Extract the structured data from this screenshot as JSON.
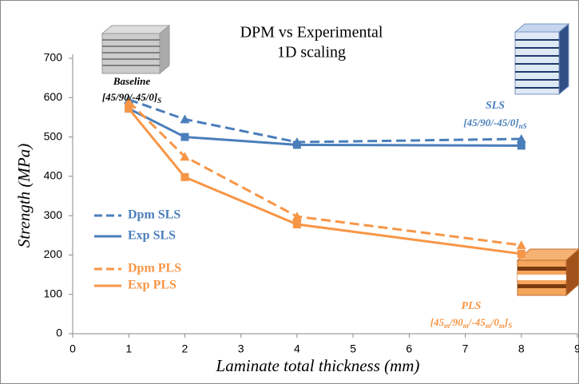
{
  "chart_data": {
    "type": "line",
    "title": "DPM vs Experimental",
    "subtitle": "1D scaling",
    "x_label": "Laminate total thickness (mm)",
    "y_label": "Strength (MPa)",
    "x": [
      1,
      2,
      4,
      8
    ],
    "series": [
      {
        "name": "Dpm SLS",
        "color": "#4a7ebb",
        "line_style": "dashed",
        "marker": "triangle",
        "values": [
          595,
          545,
          487,
          495
        ]
      },
      {
        "name": "Exp SLS",
        "color": "#4a7ebb",
        "line_style": "solid",
        "marker": "square",
        "values": [
          572,
          500,
          480,
          478
        ]
      },
      {
        "name": "Dpm PLS",
        "color": "#f79646",
        "line_style": "dashed",
        "marker": "triangle",
        "values": [
          590,
          450,
          298,
          225
        ]
      },
      {
        "name": "Exp PLS",
        "color": "#f79646",
        "line_style": "solid",
        "marker": "square",
        "values": [
          572,
          398,
          278,
          203
        ]
      }
    ],
    "xlim": [
      0,
      9
    ],
    "xticks": [
      0,
      1,
      2,
      3,
      4,
      5,
      6,
      7,
      8,
      9
    ],
    "ylim": [
      0,
      700
    ],
    "yticks": [
      0,
      100,
      200,
      300,
      400,
      500,
      600,
      700
    ],
    "grid": false,
    "annotations": [
      {
        "color": "#000000",
        "parts": [
          "Baseline"
        ]
      },
      {
        "color": "#000000",
        "parts": [
          "[45/90/-45/0]",
          "S"
        ]
      },
      {
        "color": "#4a7ebb",
        "parts": [
          "SLS"
        ]
      },
      {
        "color": "#4a7ebb",
        "parts": [
          "[45/90/-45/0]",
          "nS"
        ]
      },
      {
        "color": "#f79646",
        "parts": [
          "PLS"
        ]
      },
      {
        "color": "#f79646",
        "parts": [
          "[45",
          "m",
          "/90",
          "m",
          "/-45",
          "m",
          "/0",
          "m",
          "]",
          "S"
        ]
      }
    ]
  }
}
